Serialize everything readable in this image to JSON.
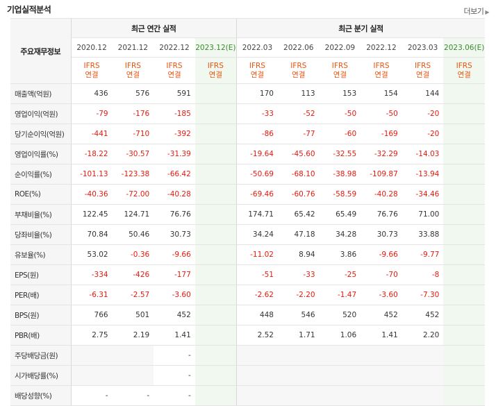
{
  "section_title": "기업실적분석",
  "more_link": "더보기",
  "table": {
    "row_header": "주요재무정보",
    "annual_group": "최근 연간 실적",
    "quarterly_group": "최근 분기 실적",
    "annual_periods": [
      "2020.12",
      "2021.12",
      "2022.12",
      "2023.12(E)"
    ],
    "quarterly_periods": [
      "2022.03",
      "2022.06",
      "2022.09",
      "2022.12",
      "2023.03",
      "2023.06(E)"
    ],
    "standard_line1": "IFRS",
    "standard_line2": "연결",
    "rows": [
      {
        "label": "매출액(억원)",
        "annual": [
          "436",
          "576",
          "591",
          ""
        ],
        "quarterly": [
          "170",
          "113",
          "153",
          "154",
          "144",
          ""
        ]
      },
      {
        "label": "영업이익(억원)",
        "annual": [
          "-79",
          "-176",
          "-185",
          ""
        ],
        "quarterly": [
          "-33",
          "-52",
          "-50",
          "-50",
          "-20",
          ""
        ]
      },
      {
        "label": "당기순이익(억원)",
        "annual": [
          "-441",
          "-710",
          "-392",
          ""
        ],
        "quarterly": [
          "-86",
          "-77",
          "-60",
          "-169",
          "-20",
          ""
        ]
      },
      {
        "label": "영업이익률(%)",
        "annual": [
          "-18.22",
          "-30.57",
          "-31.39",
          ""
        ],
        "quarterly": [
          "-19.64",
          "-45.60",
          "-32.55",
          "-32.29",
          "-14.03",
          ""
        ]
      },
      {
        "label": "순이익률(%)",
        "annual": [
          "-101.13",
          "-123.38",
          "-66.42",
          ""
        ],
        "quarterly": [
          "-50.69",
          "-68.10",
          "-38.98",
          "-109.87",
          "-13.94",
          ""
        ]
      },
      {
        "label": "ROE(%)",
        "annual": [
          "-40.36",
          "-72.00",
          "-40.28",
          ""
        ],
        "quarterly": [
          "-69.46",
          "-60.76",
          "-58.59",
          "-40.28",
          "-34.46",
          ""
        ]
      },
      {
        "label": "부채비율(%)",
        "annual": [
          "122.45",
          "124.71",
          "76.76",
          ""
        ],
        "quarterly": [
          "174.71",
          "65.42",
          "65.49",
          "76.76",
          "71.00",
          ""
        ]
      },
      {
        "label": "당좌비율(%)",
        "annual": [
          "70.84",
          "50.46",
          "30.73",
          ""
        ],
        "quarterly": [
          "34.24",
          "47.18",
          "34.28",
          "30.73",
          "33.88",
          ""
        ]
      },
      {
        "label": "유보율(%)",
        "annual": [
          "53.02",
          "-0.36",
          "-9.66",
          ""
        ],
        "quarterly": [
          "-11.02",
          "8.94",
          "3.86",
          "-9.66",
          "-9.77",
          ""
        ]
      },
      {
        "label": "EPS(원)",
        "annual": [
          "-334",
          "-426",
          "-177",
          ""
        ],
        "quarterly": [
          "-51",
          "-33",
          "-25",
          "-70",
          "-8",
          ""
        ]
      },
      {
        "label": "PER(배)",
        "annual": [
          "-6.31",
          "-2.57",
          "-3.60",
          ""
        ],
        "quarterly": [
          "-2.62",
          "-2.20",
          "-1.47",
          "-3.60",
          "-7.30",
          ""
        ]
      },
      {
        "label": "BPS(원)",
        "annual": [
          "766",
          "501",
          "452",
          ""
        ],
        "quarterly": [
          "448",
          "546",
          "520",
          "452",
          "452",
          ""
        ]
      },
      {
        "label": "PBR(배)",
        "annual": [
          "2.75",
          "2.19",
          "1.41",
          ""
        ],
        "quarterly": [
          "2.52",
          "1.71",
          "1.06",
          "1.41",
          "2.20",
          ""
        ]
      },
      {
        "label": "주당배당금(원)",
        "annual": [
          "",
          "",
          "-",
          ""
        ],
        "quarterly": [
          "",
          "",
          "",
          "",
          "",
          ""
        ]
      },
      {
        "label": "시가배당률(%)",
        "annual": [
          "",
          "",
          "-",
          ""
        ],
        "quarterly": [
          "",
          "",
          "",
          "",
          "",
          ""
        ]
      },
      {
        "label": "배당성향(%)",
        "annual": [
          "-",
          "-",
          "-",
          ""
        ],
        "quarterly": [
          "",
          "",
          "",
          "",
          "",
          ""
        ]
      }
    ]
  },
  "colors": {
    "negative": "#e8180c",
    "standard_text": "#e8530e",
    "estimate_text": "#3a8a2e",
    "estimate_bg": "#f1f8f0",
    "header_bg": "#f6f6f6"
  }
}
